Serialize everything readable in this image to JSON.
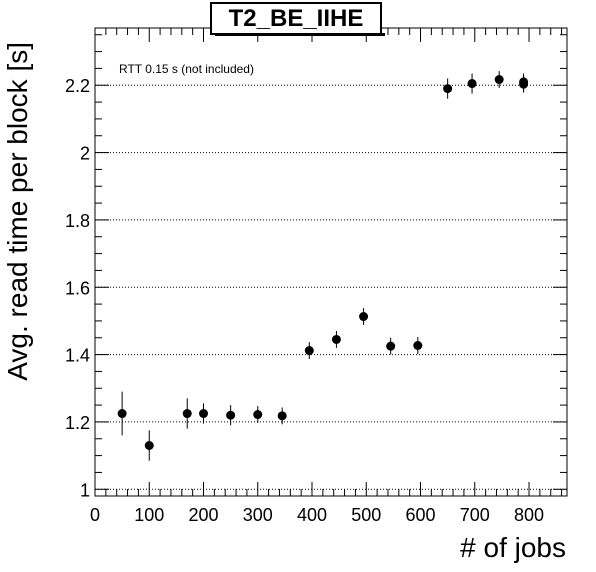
{
  "chart_data": {
    "type": "scatter",
    "title": "T2_BE_IIHE",
    "xlabel": "# of jobs",
    "ylabel": "Avg. read time per block [s]",
    "annotation": "RTT 0.15 s (not included)",
    "xlim": [
      0,
      870
    ],
    "ylim": [
      0.98,
      2.37
    ],
    "x_ticks": [
      0,
      100,
      200,
      300,
      400,
      500,
      600,
      700,
      800
    ],
    "y_ticks": [
      1,
      1.2,
      1.4,
      1.6,
      1.8,
      2,
      2.2
    ],
    "y_tick_labels": [
      "1",
      "1.2",
      "1.4",
      "1.6",
      "1.8",
      "2",
      "2.2"
    ],
    "grid": "horizontal dotted",
    "points": [
      {
        "x": 50,
        "y": 1.225,
        "err": 0.065
      },
      {
        "x": 100,
        "y": 1.13,
        "err": 0.045
      },
      {
        "x": 170,
        "y": 1.225,
        "err": 0.045
      },
      {
        "x": 200,
        "y": 1.225,
        "err": 0.03
      },
      {
        "x": 250,
        "y": 1.22,
        "err": 0.03
      },
      {
        "x": 300,
        "y": 1.222,
        "err": 0.025
      },
      {
        "x": 345,
        "y": 1.218,
        "err": 0.025
      },
      {
        "x": 395,
        "y": 1.412,
        "err": 0.025
      },
      {
        "x": 445,
        "y": 1.445,
        "err": 0.025
      },
      {
        "x": 495,
        "y": 1.513,
        "err": 0.025
      },
      {
        "x": 545,
        "y": 1.425,
        "err": 0.025
      },
      {
        "x": 595,
        "y": 1.427,
        "err": 0.025
      },
      {
        "x": 650,
        "y": 2.19,
        "err": 0.03
      },
      {
        "x": 695,
        "y": 2.205,
        "err": 0.03
      },
      {
        "x": 745,
        "y": 2.217,
        "err": 0.025
      },
      {
        "x": 790,
        "y": 2.21,
        "err": 0.025
      },
      {
        "x": 790,
        "y": 2.203,
        "err": 0.025
      }
    ]
  }
}
